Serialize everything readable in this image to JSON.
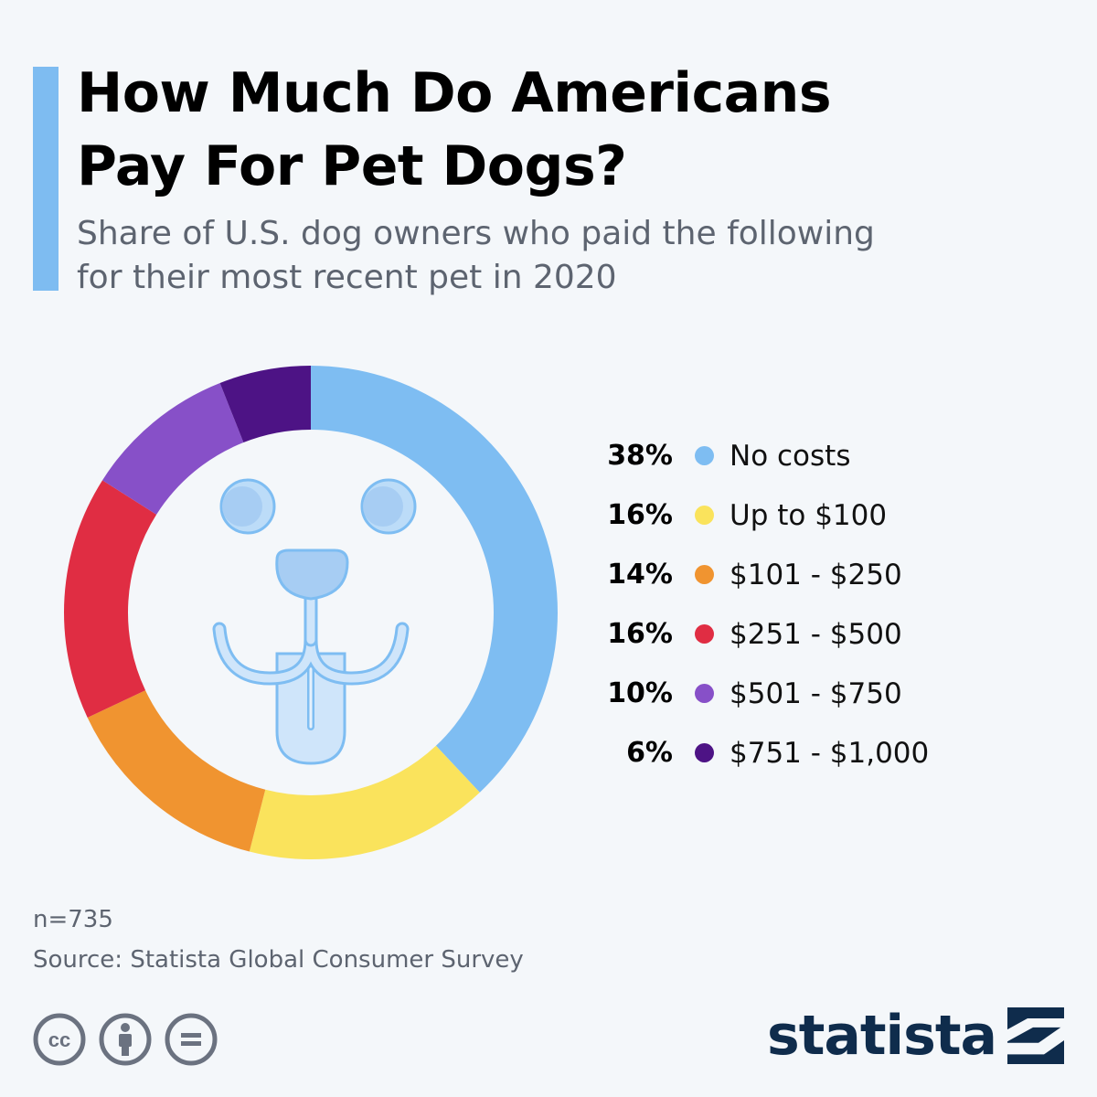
{
  "header": {
    "title_line1": "How Much Do Americans",
    "title_line2": "Pay For Pet Dogs?",
    "subtitle_line1": "Share of U.S. dog owners who paid the following",
    "subtitle_line2": "for their most recent pet in 2020",
    "accent_color": "#7ebcf1"
  },
  "chart_data": {
    "type": "pie",
    "title": "How Much Do Americans Pay For Pet Dogs?",
    "subtitle": "Share of U.S. dog owners who paid the following for their most recent pet in 2020",
    "donut": true,
    "categories": [
      "No costs",
      "Up to $100",
      "$101 - $250",
      "$251 - $500",
      "$501 - $750",
      "$751 - $1,000"
    ],
    "values": [
      38,
      16,
      14,
      16,
      10,
      6
    ],
    "value_labels": [
      "38%",
      "16%",
      "14%",
      "16%",
      "10%",
      "6%"
    ],
    "colors": [
      "#7ebdf2",
      "#fae35c",
      "#f09430",
      "#e02d43",
      "#8750c8",
      "#4d1385"
    ],
    "legend_position": "right",
    "center_icon": "dog-face-icon"
  },
  "footer": {
    "sample_size": "n=735",
    "source": "Source: Statista Global Consumer Survey",
    "license_icons": [
      "cc-icon",
      "attribution-icon",
      "no-derivatives-icon"
    ],
    "brand": "statista",
    "brand_color": "#0f2c4c"
  }
}
